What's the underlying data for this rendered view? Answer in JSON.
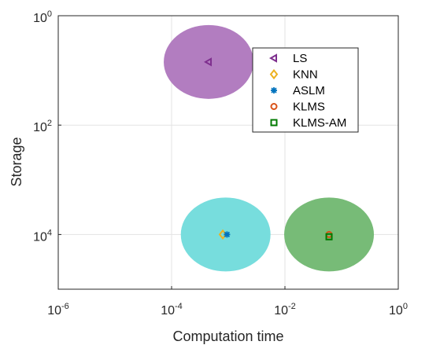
{
  "chart_data": {
    "type": "scatter",
    "xlabel": "Computation time",
    "ylabel": "Storage",
    "xscale": "log",
    "yscale": "log",
    "y_reversed": true,
    "xlim": [
      1e-06,
      1
    ],
    "ylim": [
      1,
      100000.0
    ],
    "xticks": [
      {
        "value": 1e-06,
        "base": "10",
        "exp": "-6"
      },
      {
        "value": 0.0001,
        "base": "10",
        "exp": "-4"
      },
      {
        "value": 0.01,
        "base": "10",
        "exp": "-2"
      },
      {
        "value": 1,
        "base": "10",
        "exp": "0"
      }
    ],
    "yticks": [
      {
        "value": 1,
        "base": "10",
        "exp": "0"
      },
      {
        "value": 100,
        "base": "10",
        "exp": "2"
      },
      {
        "value": 10000,
        "base": "10",
        "exp": "4"
      }
    ],
    "grid": true,
    "legend_position": "top-right",
    "series": [
      {
        "name": "LS",
        "marker": "triangle-left",
        "color": "#7E2F8E",
        "x": 0.00045,
        "y": 7
      },
      {
        "name": "KNN",
        "marker": "diamond",
        "color": "#EDB120",
        "x": 0.0008,
        "y": 10000
      },
      {
        "name": "ASLM",
        "marker": "asterisk",
        "color": "#0072BD",
        "x": 0.00095,
        "y": 10000
      },
      {
        "name": "KLMS",
        "marker": "circle",
        "color": "#D95319",
        "x": 0.06,
        "y": 10000
      },
      {
        "name": "KLMS-AM",
        "marker": "square",
        "color": "#007A00",
        "x": 0.06,
        "y": 11000
      }
    ],
    "regions": [
      {
        "group": "LS",
        "center_x": 0.00045,
        "center_y": 7,
        "color": "#B27DC0"
      },
      {
        "group": "KNN / ASLM",
        "center_x": 0.0009,
        "center_y": 10000,
        "color": "#77DDDD"
      },
      {
        "group": "KLMS / KLMS-AM",
        "center_x": 0.06,
        "center_y": 10000,
        "color": "#77BB77"
      }
    ]
  }
}
